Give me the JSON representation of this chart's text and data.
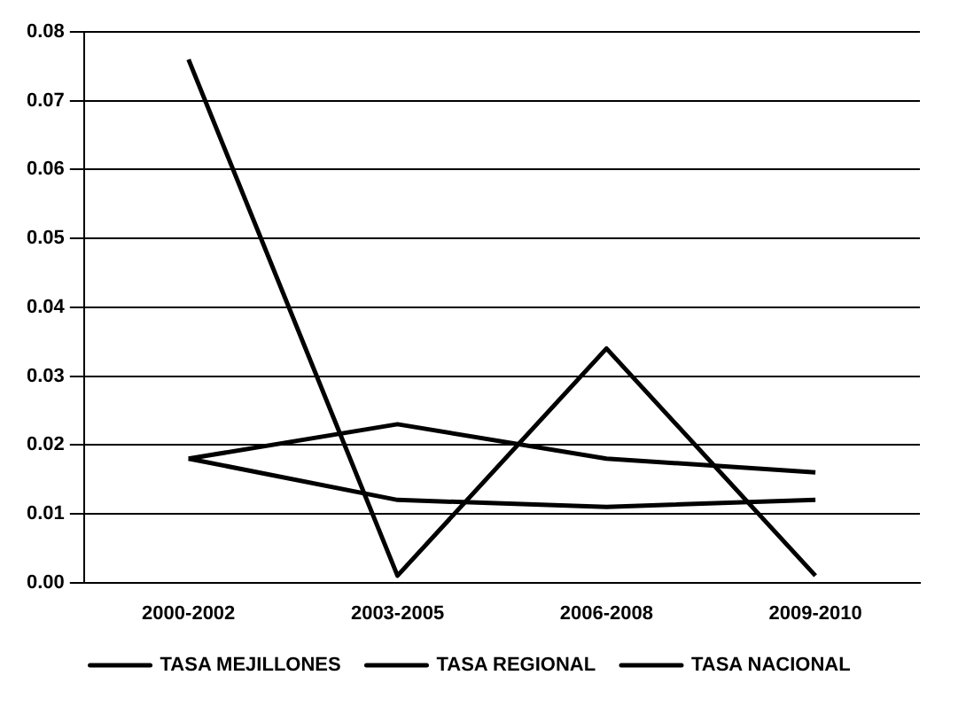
{
  "chart_data": {
    "type": "line",
    "categories": [
      "2000-2002",
      "2003-2005",
      "2006-2008",
      "2009-2010"
    ],
    "series": [
      {
        "name": "TASA MEJILLONES",
        "color": "#000000",
        "values": [
          0.076,
          0.001,
          0.034,
          0.001
        ]
      },
      {
        "name": "TASA REGIONAL",
        "color": "#000000",
        "values": [
          0.018,
          0.023,
          0.018,
          0.016
        ]
      },
      {
        "name": "TASA NACIONAL",
        "color": "#000000",
        "values": [
          0.018,
          0.012,
          0.011,
          0.012
        ]
      }
    ],
    "ylim": [
      0,
      0.08
    ],
    "yticks": [
      {
        "value": 0,
        "label": "0.00"
      },
      0.01,
      0.02,
      0.03,
      0.04,
      0.05,
      0.06,
      0.07,
      0.08
    ],
    "grid": "y",
    "legend": "bottom",
    "marker": "none",
    "line_style": "solid"
  }
}
